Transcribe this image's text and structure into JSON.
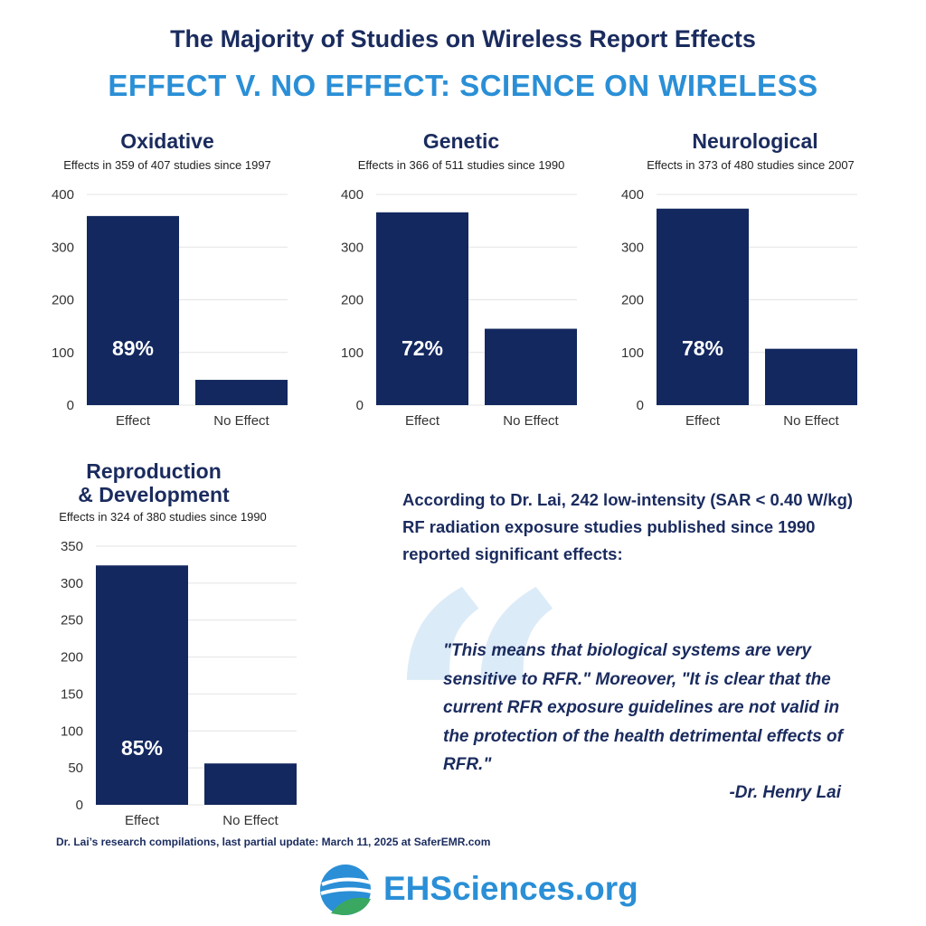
{
  "header": {
    "title": "The Majority of Studies on Wireless Report Effects",
    "subtitle": "EFFECT V. NO EFFECT: SCIENCE ON WIRELESS"
  },
  "chart_data": [
    {
      "type": "bar",
      "title": "Oxidative",
      "note": "Effects in 359 of 407 studies since 1997",
      "categories": [
        "Effect",
        "No Effect"
      ],
      "values": [
        359,
        48
      ],
      "bar_label": "89%",
      "ylim": [
        0,
        400
      ],
      "yticks": [
        0,
        100,
        200,
        300,
        400
      ],
      "grid": true,
      "colors": {
        "bar": "#13285f"
      }
    },
    {
      "type": "bar",
      "title": "Genetic",
      "note": "Effects in 366 of 511 studies since 1990",
      "categories": [
        "Effect",
        "No Effect"
      ],
      "values": [
        366,
        145
      ],
      "bar_label": "72%",
      "ylim": [
        0,
        400
      ],
      "yticks": [
        0,
        100,
        200,
        300,
        400
      ],
      "grid": true,
      "colors": {
        "bar": "#13285f"
      }
    },
    {
      "type": "bar",
      "title": "Neurological",
      "note": "Effects in 373 of 480 studies since 2007",
      "categories": [
        "Effect",
        "No Effect"
      ],
      "values": [
        373,
        107
      ],
      "bar_label": "78%",
      "ylim": [
        0,
        400
      ],
      "yticks": [
        0,
        100,
        200,
        300,
        400
      ],
      "grid": true,
      "colors": {
        "bar": "#13285f"
      }
    },
    {
      "type": "bar",
      "title": "Reproduction\n& Development",
      "note": "Effects in 324 of 380 studies since 1990",
      "categories": [
        "Effect",
        "No Effect"
      ],
      "values": [
        324,
        56
      ],
      "bar_label": "85%",
      "ylim": [
        0,
        350
      ],
      "yticks": [
        0,
        50,
        100,
        150,
        200,
        250,
        300,
        350
      ],
      "grid": true,
      "colors": {
        "bar": "#13285f"
      }
    }
  ],
  "quote": {
    "intro": "According to Dr. Lai, 242 low-intensity (SAR < 0.40 W/kg) RF radiation exposure studies published since 1990 reported significant effects:",
    "text": "\"This means that biological systems are very sensitive to RFR.\" Moreover, \"It is clear that the current RFR exposure guidelines are not valid in the protection of the health detrimental effects of RFR.\"",
    "author": "-Dr. Henry Lai",
    "mark_icon": "quote-mark-icon"
  },
  "footnote": "Dr. Lai’s research compilations, last partial update: March 11, 2025 at SaferEMR.com",
  "logo": {
    "text": "EHSciences.org",
    "icon": "globe-leaf-icon",
    "colors": {
      "blue": "#2a8fd6",
      "green": "#3aa860"
    }
  }
}
